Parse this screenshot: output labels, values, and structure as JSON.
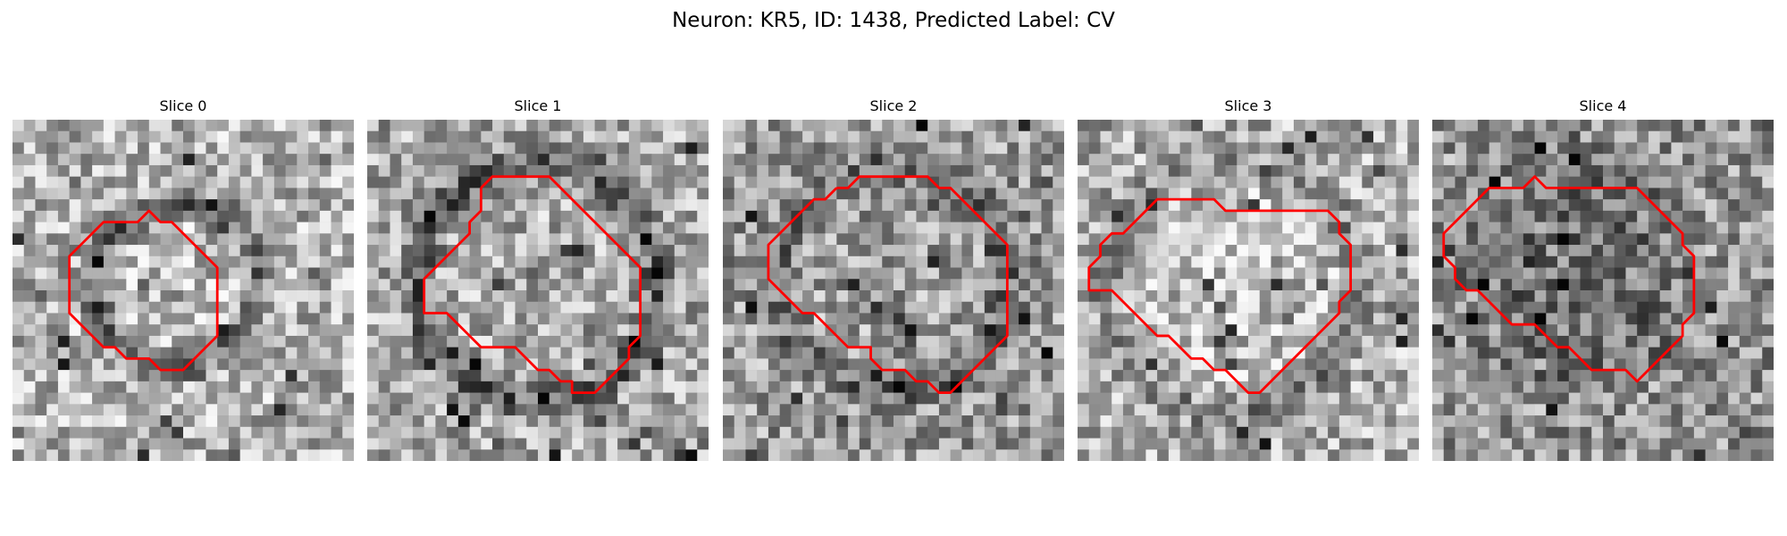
{
  "figure": {
    "title": "Neuron: KR5, ID: 1438, Predicted Label: CV"
  },
  "panels": [
    {
      "title": "Slice 0",
      "contour": [
        [
          9,
          9
        ],
        [
          10,
          9
        ],
        [
          11,
          9
        ],
        [
          12,
          8
        ],
        [
          13,
          9
        ],
        [
          14,
          9
        ],
        [
          15,
          10
        ],
        [
          16,
          11
        ],
        [
          17,
          12
        ],
        [
          18,
          13
        ],
        [
          18,
          14
        ],
        [
          18,
          15
        ],
        [
          18,
          16
        ],
        [
          18,
          17
        ],
        [
          18,
          18
        ],
        [
          18,
          19
        ],
        [
          17,
          20
        ],
        [
          16,
          21
        ],
        [
          15,
          22
        ],
        [
          14,
          22
        ],
        [
          13,
          22
        ],
        [
          12,
          21
        ],
        [
          11,
          21
        ],
        [
          10,
          21
        ],
        [
          9,
          20
        ],
        [
          8,
          20
        ],
        [
          7,
          19
        ],
        [
          6,
          18
        ],
        [
          5,
          17
        ],
        [
          5,
          16
        ],
        [
          5,
          15
        ],
        [
          5,
          14
        ],
        [
          5,
          13
        ],
        [
          5,
          12
        ],
        [
          6,
          11
        ],
        [
          7,
          10
        ],
        [
          8,
          9
        ],
        [
          9,
          9
        ]
      ]
    },
    {
      "title": "Slice 1",
      "contour": [
        [
          10,
          6
        ],
        [
          11,
          5
        ],
        [
          12,
          5
        ],
        [
          13,
          5
        ],
        [
          14,
          5
        ],
        [
          15,
          5
        ],
        [
          16,
          5
        ],
        [
          17,
          6
        ],
        [
          18,
          7
        ],
        [
          19,
          8
        ],
        [
          20,
          9
        ],
        [
          21,
          10
        ],
        [
          22,
          11
        ],
        [
          23,
          12
        ],
        [
          24,
          13
        ],
        [
          24,
          14
        ],
        [
          24,
          15
        ],
        [
          24,
          16
        ],
        [
          24,
          17
        ],
        [
          24,
          18
        ],
        [
          24,
          19
        ],
        [
          23,
          20
        ],
        [
          23,
          21
        ],
        [
          22,
          22
        ],
        [
          21,
          23
        ],
        [
          20,
          24
        ],
        [
          19,
          24
        ],
        [
          18,
          24
        ],
        [
          18,
          23
        ],
        [
          17,
          23
        ],
        [
          16,
          22
        ],
        [
          15,
          22
        ],
        [
          14,
          21
        ],
        [
          13,
          20
        ],
        [
          12,
          20
        ],
        [
          11,
          20
        ],
        [
          10,
          20
        ],
        [
          9,
          19
        ],
        [
          8,
          18
        ],
        [
          7,
          17
        ],
        [
          6,
          17
        ],
        [
          5,
          17
        ],
        [
          5,
          16
        ],
        [
          5,
          15
        ],
        [
          5,
          14
        ],
        [
          6,
          13
        ],
        [
          7,
          12
        ],
        [
          8,
          11
        ],
        [
          9,
          10
        ],
        [
          9,
          9
        ],
        [
          10,
          8
        ],
        [
          10,
          7
        ],
        [
          10,
          6
        ]
      ]
    },
    {
      "title": "Slice 2",
      "contour": [
        [
          10,
          6
        ],
        [
          11,
          6
        ],
        [
          12,
          5
        ],
        [
          13,
          5
        ],
        [
          14,
          5
        ],
        [
          15,
          5
        ],
        [
          16,
          5
        ],
        [
          17,
          5
        ],
        [
          18,
          5
        ],
        [
          19,
          6
        ],
        [
          20,
          6
        ],
        [
          21,
          7
        ],
        [
          22,
          8
        ],
        [
          23,
          9
        ],
        [
          24,
          10
        ],
        [
          25,
          11
        ],
        [
          25,
          12
        ],
        [
          25,
          13
        ],
        [
          25,
          14
        ],
        [
          25,
          15
        ],
        [
          25,
          16
        ],
        [
          25,
          17
        ],
        [
          25,
          18
        ],
        [
          25,
          19
        ],
        [
          24,
          20
        ],
        [
          23,
          21
        ],
        [
          22,
          22
        ],
        [
          21,
          23
        ],
        [
          20,
          24
        ],
        [
          19,
          24
        ],
        [
          18,
          23
        ],
        [
          17,
          23
        ],
        [
          16,
          22
        ],
        [
          15,
          22
        ],
        [
          14,
          22
        ],
        [
          13,
          21
        ],
        [
          13,
          20
        ],
        [
          12,
          20
        ],
        [
          11,
          20
        ],
        [
          10,
          19
        ],
        [
          9,
          18
        ],
        [
          8,
          17
        ],
        [
          7,
          17
        ],
        [
          6,
          16
        ],
        [
          5,
          15
        ],
        [
          4,
          14
        ],
        [
          4,
          13
        ],
        [
          4,
          12
        ],
        [
          4,
          11
        ],
        [
          5,
          10
        ],
        [
          6,
          9
        ],
        [
          7,
          8
        ],
        [
          8,
          7
        ],
        [
          9,
          7
        ],
        [
          10,
          6
        ]
      ]
    },
    {
      "title": "Slice 3",
      "contour": [
        [
          9,
          7
        ],
        [
          10,
          7
        ],
        [
          11,
          7
        ],
        [
          12,
          7
        ],
        [
          13,
          8
        ],
        [
          14,
          8
        ],
        [
          15,
          8
        ],
        [
          16,
          8
        ],
        [
          17,
          8
        ],
        [
          18,
          8
        ],
        [
          19,
          8
        ],
        [
          20,
          8
        ],
        [
          21,
          8
        ],
        [
          22,
          8
        ],
        [
          23,
          9
        ],
        [
          23,
          10
        ],
        [
          24,
          11
        ],
        [
          24,
          12
        ],
        [
          24,
          13
        ],
        [
          24,
          14
        ],
        [
          24,
          15
        ],
        [
          23,
          16
        ],
        [
          23,
          17
        ],
        [
          22,
          18
        ],
        [
          21,
          19
        ],
        [
          20,
          20
        ],
        [
          19,
          21
        ],
        [
          18,
          22
        ],
        [
          17,
          23
        ],
        [
          16,
          24
        ],
        [
          15,
          24
        ],
        [
          14,
          23
        ],
        [
          13,
          22
        ],
        [
          12,
          22
        ],
        [
          11,
          21
        ],
        [
          10,
          21
        ],
        [
          9,
          20
        ],
        [
          8,
          19
        ],
        [
          7,
          19
        ],
        [
          6,
          18
        ],
        [
          5,
          17
        ],
        [
          4,
          16
        ],
        [
          3,
          15
        ],
        [
          2,
          15
        ],
        [
          1,
          15
        ],
        [
          1,
          14
        ],
        [
          1,
          13
        ],
        [
          2,
          12
        ],
        [
          2,
          11
        ],
        [
          3,
          10
        ],
        [
          4,
          10
        ],
        [
          5,
          9
        ],
        [
          6,
          8
        ],
        [
          7,
          7
        ],
        [
          8,
          7
        ],
        [
          9,
          7
        ]
      ]
    },
    {
      "title": "Slice 4",
      "contour": [
        [
          7,
          6
        ],
        [
          8,
          6
        ],
        [
          9,
          5
        ],
        [
          10,
          6
        ],
        [
          11,
          6
        ],
        [
          12,
          6
        ],
        [
          13,
          6
        ],
        [
          14,
          6
        ],
        [
          15,
          6
        ],
        [
          16,
          6
        ],
        [
          17,
          6
        ],
        [
          18,
          6
        ],
        [
          19,
          7
        ],
        [
          20,
          8
        ],
        [
          21,
          9
        ],
        [
          22,
          10
        ],
        [
          22,
          11
        ],
        [
          23,
          12
        ],
        [
          23,
          13
        ],
        [
          23,
          14
        ],
        [
          23,
          15
        ],
        [
          23,
          16
        ],
        [
          23,
          17
        ],
        [
          22,
          18
        ],
        [
          22,
          19
        ],
        [
          21,
          20
        ],
        [
          20,
          21
        ],
        [
          19,
          22
        ],
        [
          18,
          23
        ],
        [
          17,
          22
        ],
        [
          16,
          22
        ],
        [
          15,
          22
        ],
        [
          14,
          22
        ],
        [
          13,
          21
        ],
        [
          12,
          20
        ],
        [
          11,
          20
        ],
        [
          10,
          19
        ],
        [
          9,
          18
        ],
        [
          8,
          18
        ],
        [
          7,
          18
        ],
        [
          6,
          17
        ],
        [
          5,
          16
        ],
        [
          4,
          15
        ],
        [
          3,
          15
        ],
        [
          2,
          14
        ],
        [
          2,
          13
        ],
        [
          1,
          12
        ],
        [
          1,
          11
        ],
        [
          1,
          10
        ],
        [
          2,
          9
        ],
        [
          3,
          8
        ],
        [
          4,
          7
        ],
        [
          5,
          6
        ],
        [
          6,
          6
        ],
        [
          7,
          6
        ]
      ]
    }
  ],
  "colors": {
    "contour": "#ff0000",
    "background": "#ffffff"
  }
}
